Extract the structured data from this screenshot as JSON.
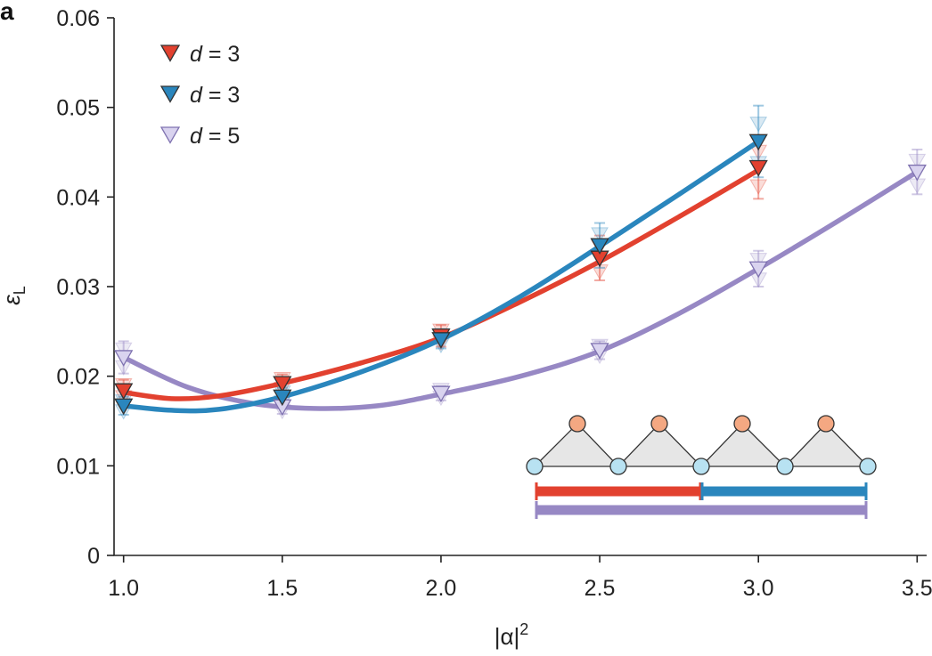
{
  "panel_label": "a",
  "colors": {
    "red": "#e2412f",
    "blue": "#2a86bd",
    "purple": "#9788c4",
    "orange_node": "#f4a882",
    "cyan_node": "#b8e2f2",
    "triangle_fill": "#e6e6e6"
  },
  "chart_data": {
    "type": "line",
    "xlabel_main": "|α|",
    "xlabel_sup": "2",
    "ylabel_main": "ε",
    "ylabel_sub": "L",
    "xlim": [
      0.97,
      3.53
    ],
    "ylim": [
      0,
      0.06
    ],
    "x_ticks": [
      "1.0",
      "1.5",
      "2.0",
      "2.5",
      "3.0",
      "3.5"
    ],
    "y_ticks": [
      "0",
      "0.01",
      "0.02",
      "0.03",
      "0.04",
      "0.05",
      "0.06"
    ],
    "grid": false,
    "legend_position": "top-left",
    "series": [
      {
        "name": "d = 3",
        "legend_italic": "d",
        "legend_rest": " = 3",
        "color": "red",
        "x": [
          1.0,
          1.5,
          2.0,
          2.5,
          3.0
        ],
        "y": [
          0.0184,
          0.0192,
          0.0245,
          0.0332,
          0.0433
        ],
        "err": [
          0.0012,
          0.001,
          0.0012,
          0.0025,
          0.0035
        ],
        "fit": [
          [
            1.0,
            0.0182
          ],
          [
            1.15,
            0.0175
          ],
          [
            1.3,
            0.0178
          ],
          [
            1.5,
            0.0192
          ],
          [
            1.75,
            0.0215
          ],
          [
            2.0,
            0.0243
          ],
          [
            2.25,
            0.0283
          ],
          [
            2.5,
            0.0328
          ],
          [
            2.75,
            0.0378
          ],
          [
            3.0,
            0.043
          ]
        ]
      },
      {
        "name": "d = 3",
        "legend_italic": "d",
        "legend_rest": " = 3",
        "color": "blue",
        "x": [
          1.0,
          1.5,
          2.0,
          2.5,
          3.0
        ],
        "y": [
          0.0167,
          0.0177,
          0.0241,
          0.0346,
          0.0462
        ],
        "err": [
          0.001,
          0.001,
          0.001,
          0.0025,
          0.004
        ],
        "fit": [
          [
            1.0,
            0.0167
          ],
          [
            1.15,
            0.0162
          ],
          [
            1.3,
            0.0163
          ],
          [
            1.5,
            0.0177
          ],
          [
            1.75,
            0.0205
          ],
          [
            2.0,
            0.0241
          ],
          [
            2.25,
            0.0289
          ],
          [
            2.5,
            0.0345
          ],
          [
            2.75,
            0.0403
          ],
          [
            3.0,
            0.0462
          ]
        ]
      },
      {
        "name": "d = 5",
        "legend_italic": "d",
        "legend_rest": " = 5",
        "color": "purple",
        "x": [
          1.0,
          1.5,
          2.0,
          2.5,
          3.0,
          3.5
        ],
        "y": [
          0.0221,
          0.0166,
          0.0181,
          0.0229,
          0.032,
          0.0428
        ],
        "err": [
          0.0018,
          0.0008,
          0.0008,
          0.001,
          0.002,
          0.0025
        ],
        "fit": [
          [
            1.0,
            0.0221
          ],
          [
            1.2,
            0.0188
          ],
          [
            1.4,
            0.017
          ],
          [
            1.6,
            0.0164
          ],
          [
            1.8,
            0.0167
          ],
          [
            2.0,
            0.018
          ],
          [
            2.25,
            0.02
          ],
          [
            2.5,
            0.0228
          ],
          [
            2.75,
            0.027
          ],
          [
            3.0,
            0.032
          ],
          [
            3.25,
            0.0373
          ],
          [
            3.5,
            0.0428
          ]
        ]
      }
    ],
    "inset": {
      "description_nodes": {
        "top_nodes": 4,
        "bottom_nodes": 5
      }
    }
  }
}
